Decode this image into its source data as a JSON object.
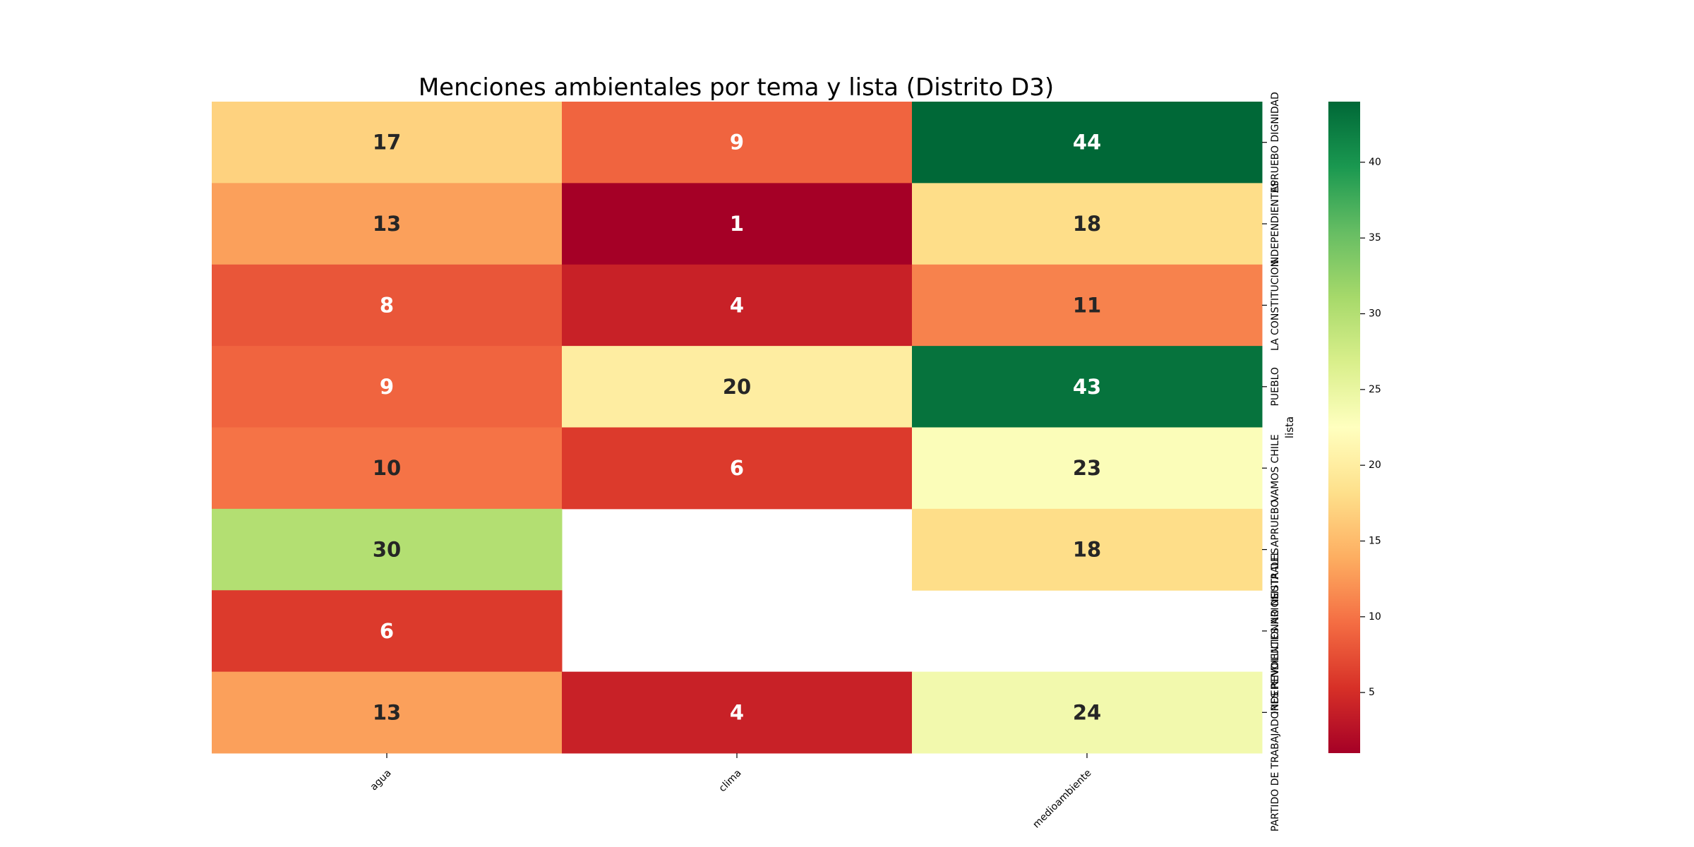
{
  "chart_data": {
    "type": "heatmap",
    "title": "Menciones ambientales por tema y lista (Distrito D3)",
    "xlabel": "",
    "ylabel": "lista",
    "x_categories": [
      "agua",
      "clima",
      "medioambiente"
    ],
    "y_categories": [
      "APRUEBO DIGNIDAD",
      "INDEPENDIENTES",
      "LA CONSTITUCION",
      "PUEBLO",
      "VAMOS CHILE",
      "LISTA DEL APRUEBO",
      "INDEPENDIENTES NO NEUTRALES",
      "PARTIDO DE TRABAJADORES REVOLUCIONARIOS"
    ],
    "values": [
      [
        17,
        9,
        44
      ],
      [
        13,
        1,
        18
      ],
      [
        8,
        4,
        11
      ],
      [
        9,
        20,
        43
      ],
      [
        10,
        6,
        23
      ],
      [
        30,
        null,
        18
      ],
      [
        6,
        null,
        null
      ],
      [
        13,
        4,
        24
      ]
    ],
    "colormap": "RdYlGn",
    "vmin": 1,
    "vmax": 44,
    "colorbar_ticks": [
      5,
      10,
      15,
      20,
      25,
      30,
      35,
      40
    ],
    "annotate": true,
    "grid": false
  }
}
